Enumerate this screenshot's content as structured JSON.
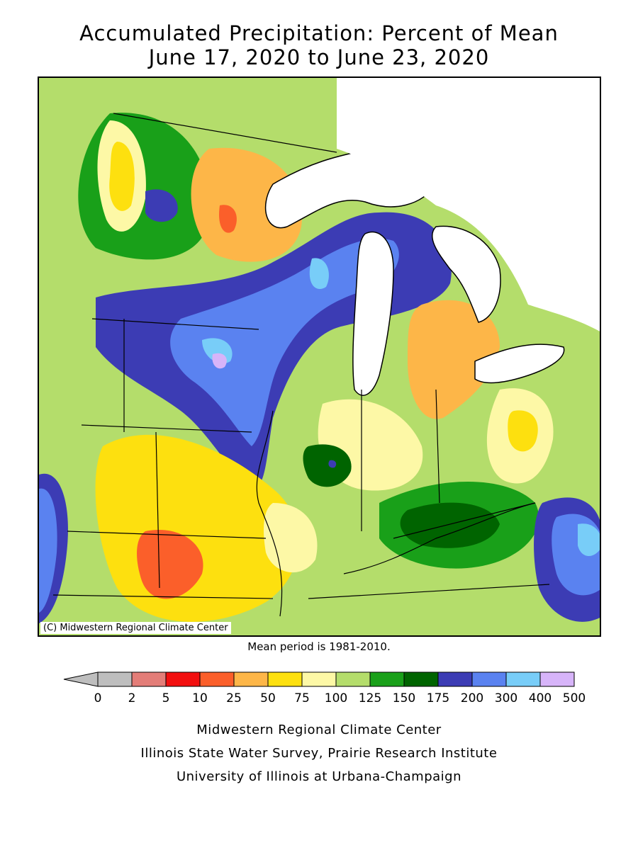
{
  "title": {
    "line1": "Accumulated Precipitation: Percent of Mean",
    "line2": "June 17, 2020 to June 23, 2020"
  },
  "map": {
    "copyright": "(C) Midwestern Regional Climate Center",
    "mean_period": "Mean period is 1981-2010."
  },
  "legend": {
    "ticks": [
      "0",
      "2",
      "5",
      "10",
      "25",
      "50",
      "75",
      "100",
      "125",
      "150",
      "175",
      "200",
      "300",
      "400",
      "500"
    ],
    "colors": [
      "#bebebe",
      "#e37d78",
      "#f20f0f",
      "#fb5f2a",
      "#fdb648",
      "#fde00f",
      "#fdf8a6",
      "#b4dd6b",
      "#19a019",
      "#006400",
      "#3c3cb4",
      "#5a82f0",
      "#78cdf8",
      "#d7b4f9"
    ]
  },
  "palette": {
    "water": "#ffffff",
    "border": "#000000"
  },
  "footer": {
    "line1": "Midwestern Regional Climate Center",
    "line2": "Illinois State Water Survey, Prairie Research Institute",
    "line3": "University of Illinois at Urbana-Champaign"
  }
}
